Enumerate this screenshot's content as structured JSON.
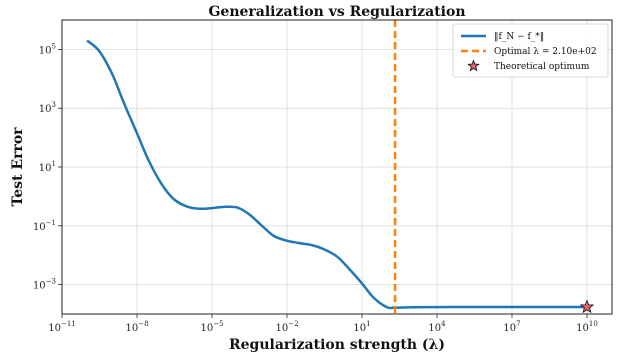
{
  "colors": {
    "curve": "#1f77b4",
    "optimal_line": "#ff7f0e",
    "star_fill": "#e5606f",
    "grid": "#d9d9d9",
    "frame": "#222222"
  },
  "chart_data": {
    "type": "line",
    "title": "Generalization vs Regularization",
    "xlabel": "Regularization strength (λ)",
    "ylabel": "Test Error",
    "xscale": "log",
    "yscale": "log",
    "xlim": [
      1e-11,
      100000000000.0
    ],
    "ylim": [
      0.0001,
      1000000
    ],
    "grid": true,
    "legend_position": "top-right",
    "xticks": [
      {
        "value": 1e-11,
        "base": "10",
        "exp": "−11"
      },
      {
        "value": 1e-08,
        "base": "10",
        "exp": "−8"
      },
      {
        "value": 1e-05,
        "base": "10",
        "exp": "−5"
      },
      {
        "value": 0.01,
        "base": "10",
        "exp": "−2"
      },
      {
        "value": 10.0,
        "base": "10",
        "exp": "1"
      },
      {
        "value": 10000.0,
        "base": "10",
        "exp": "4"
      },
      {
        "value": 10000000.0,
        "base": "10",
        "exp": "7"
      },
      {
        "value": 10000000000.0,
        "base": "10",
        "exp": "10"
      }
    ],
    "yticks": [
      {
        "value": 0.001,
        "base": "10",
        "exp": "−3"
      },
      {
        "value": 0.1,
        "base": "10",
        "exp": "−1"
      },
      {
        "value": 10.0,
        "base": "10",
        "exp": "1"
      },
      {
        "value": 1000.0,
        "base": "10",
        "exp": "3"
      },
      {
        "value": 100000.0,
        "base": "10",
        "exp": "5"
      }
    ],
    "series": [
      {
        "name": "‖f_N − f_*‖",
        "style": "line",
        "x": [
          1e-10,
          3e-10,
          1e-09,
          3e-09,
          1e-08,
          3e-08,
          1e-07,
          3e-07,
          1e-06,
          3e-06,
          1e-05,
          3e-05,
          0.0001,
          0.0003,
          0.001,
          0.003,
          0.01,
          0.03,
          0.1,
          0.3,
          1,
          3,
          10,
          30,
          100,
          210,
          1000.0,
          10000.0,
          100000.0,
          1000000.0,
          10000000.0,
          100000000.0,
          1000000000.0,
          10000000000.0
        ],
        "y": [
          200000,
          90000,
          15000,
          1500,
          140,
          16,
          2.5,
          0.8,
          0.45,
          0.38,
          0.4,
          0.44,
          0.42,
          0.25,
          0.1,
          0.045,
          0.031,
          0.026,
          0.022,
          0.016,
          0.009,
          0.0035,
          0.0011,
          0.00035,
          0.00017,
          0.000165,
          0.00017,
          0.000172,
          0.000173,
          0.000173,
          0.000173,
          0.000173,
          0.000173,
          0.000173
        ]
      },
      {
        "name": "Optimal λ = 2.10e+02",
        "style": "vline",
        "x": 210
      },
      {
        "name": "Theoretical optimum",
        "style": "marker",
        "x": 10000000000.0,
        "y": 0.000173
      }
    ]
  }
}
